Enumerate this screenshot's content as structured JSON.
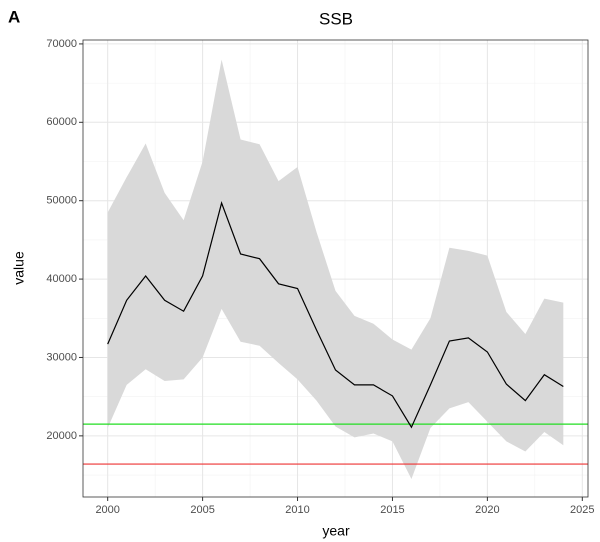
{
  "chart_data": {
    "type": "line",
    "panel_label": "A",
    "title": "SSB",
    "xlabel": "year",
    "ylabel": "value",
    "x": [
      2000,
      2001,
      2002,
      2003,
      2004,
      2005,
      2006,
      2007,
      2008,
      2009,
      2010,
      2011,
      2012,
      2013,
      2014,
      2015,
      2016,
      2017,
      2018,
      2019,
      2020,
      2021,
      2022,
      2023,
      2024
    ],
    "series": [
      {
        "color": "#000000",
        "values": [
          31700,
          37300,
          40400,
          37300,
          35900,
          40400,
          49700,
          43200,
          42600,
          39400,
          38800,
          33500,
          28400,
          26500,
          26500,
          25100,
          21100,
          26500,
          32100,
          32500,
          30700,
          26600,
          24500,
          27800,
          26300
        ]
      }
    ],
    "band": {
      "color": "#d9d9d9",
      "upper": [
        48500,
        53000,
        57300,
        51000,
        47500,
        55000,
        68000,
        57800,
        57200,
        52500,
        54300,
        46000,
        38500,
        35300,
        34300,
        32300,
        31000,
        35000,
        44000,
        43600,
        43000,
        35800,
        33000,
        37500,
        37000
      ],
      "lower": [
        21000,
        26500,
        28500,
        27000,
        27200,
        30000,
        36200,
        32000,
        31500,
        29300,
        27200,
        24500,
        21200,
        19800,
        20300,
        19300,
        14500,
        21000,
        23500,
        24300,
        21800,
        19300,
        18000,
        20500,
        18800
      ]
    },
    "hlines": [
      {
        "value": 21500,
        "color": "#22dd22"
      },
      {
        "value": 16400,
        "color": "#ee3333"
      }
    ],
    "xlim": [
      1998.7,
      2025.3
    ],
    "ylim": [
      12200,
      70500
    ],
    "xticks": [
      2000,
      2005,
      2010,
      2015,
      2020,
      2025
    ],
    "yticks": [
      20000,
      30000,
      40000,
      50000,
      60000,
      70000
    ],
    "grid": true
  }
}
